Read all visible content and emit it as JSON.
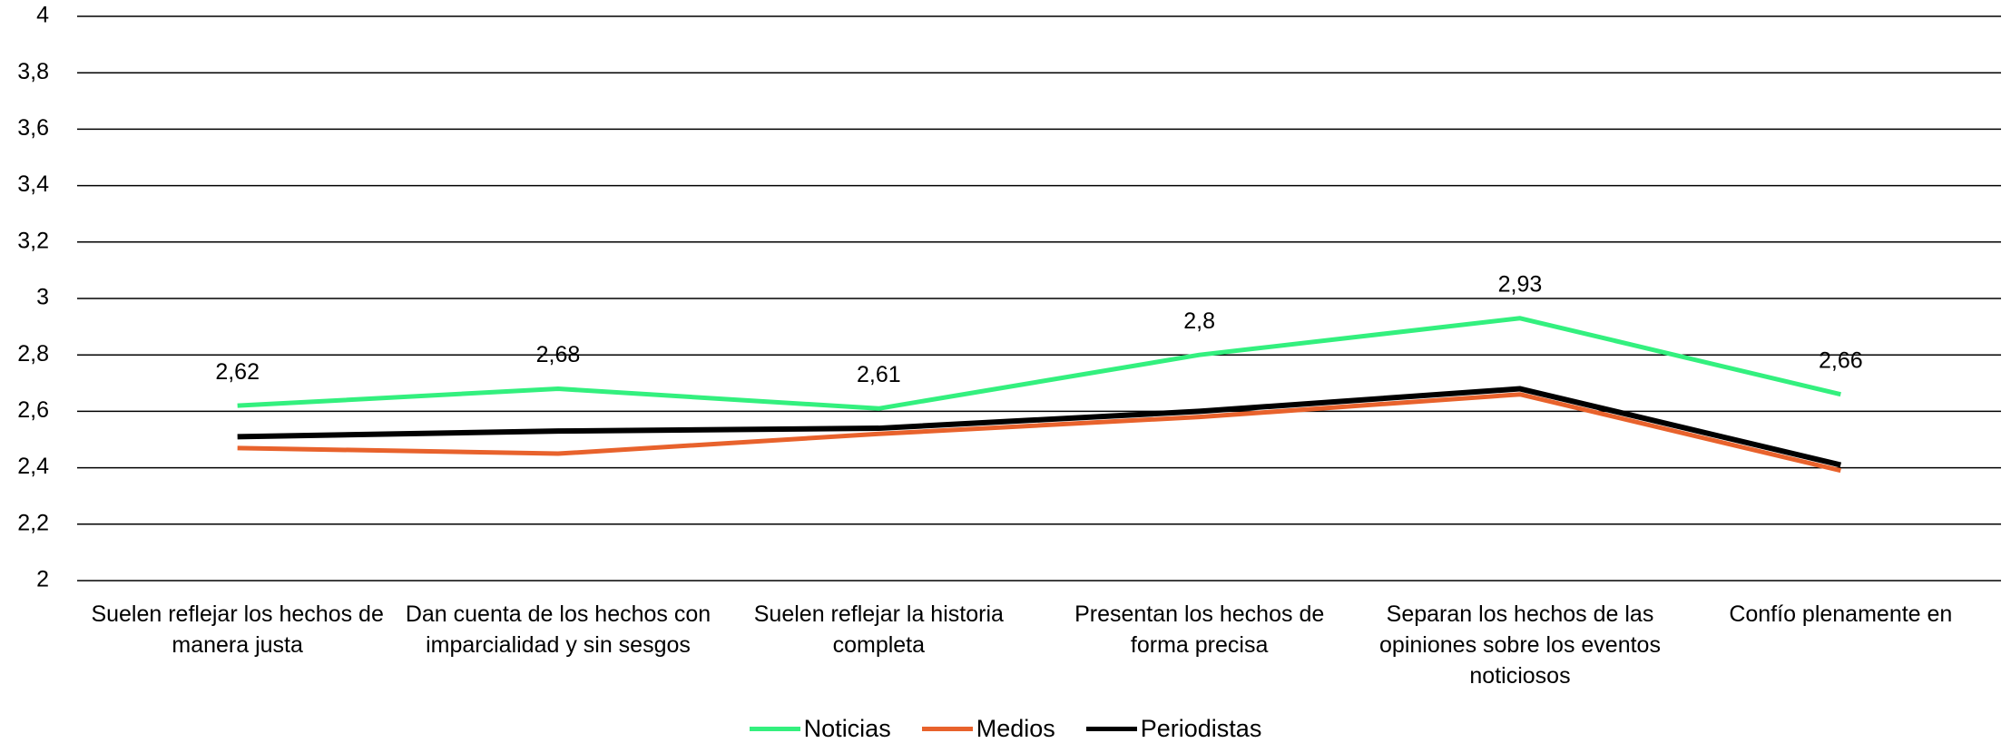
{
  "chart_data": {
    "type": "line",
    "categories": [
      "Suelen reflejar los hechos de manera justa",
      "Dan cuenta de los hechos con imparcialidad y sin sesgos",
      "Suelen reflejar la historia completa",
      "Presentan los hechos de forma precisa",
      "Separan los hechos de las opiniones sobre los eventos noticiosos",
      "Confío plenamente en"
    ],
    "series": [
      {
        "name": "Noticias",
        "color": "#33f07e",
        "values": [
          2.62,
          2.68,
          2.61,
          2.8,
          2.93,
          2.66
        ],
        "value_labels": [
          "2,62",
          "2,68",
          "2,61",
          "2,8",
          "2,93",
          "2,66"
        ]
      },
      {
        "name": "Medios",
        "color": "#e8622c",
        "values": [
          2.47,
          2.45,
          2.52,
          2.58,
          2.66,
          2.39
        ]
      },
      {
        "name": "Periodistas",
        "color": "#000000",
        "values": [
          2.51,
          2.53,
          2.54,
          2.6,
          2.68,
          2.41
        ]
      }
    ],
    "ylim": [
      2,
      4
    ],
    "yticks": [
      2,
      {
        "value": 2.2,
        "label": "2,2"
      },
      {
        "value": 2.4,
        "label": "2,4"
      },
      {
        "value": 2.6,
        "label": "2,6"
      },
      {
        "value": 2.8,
        "label": "2,8"
      },
      3,
      {
        "value": 3.2,
        "label": "3,2"
      },
      {
        "value": 3.4,
        "label": "3,4"
      },
      {
        "value": 3.6,
        "label": "3,6"
      },
      {
        "value": 3.8,
        "label": "3,8"
      },
      4
    ],
    "grid": true,
    "legend": "bottom"
  }
}
